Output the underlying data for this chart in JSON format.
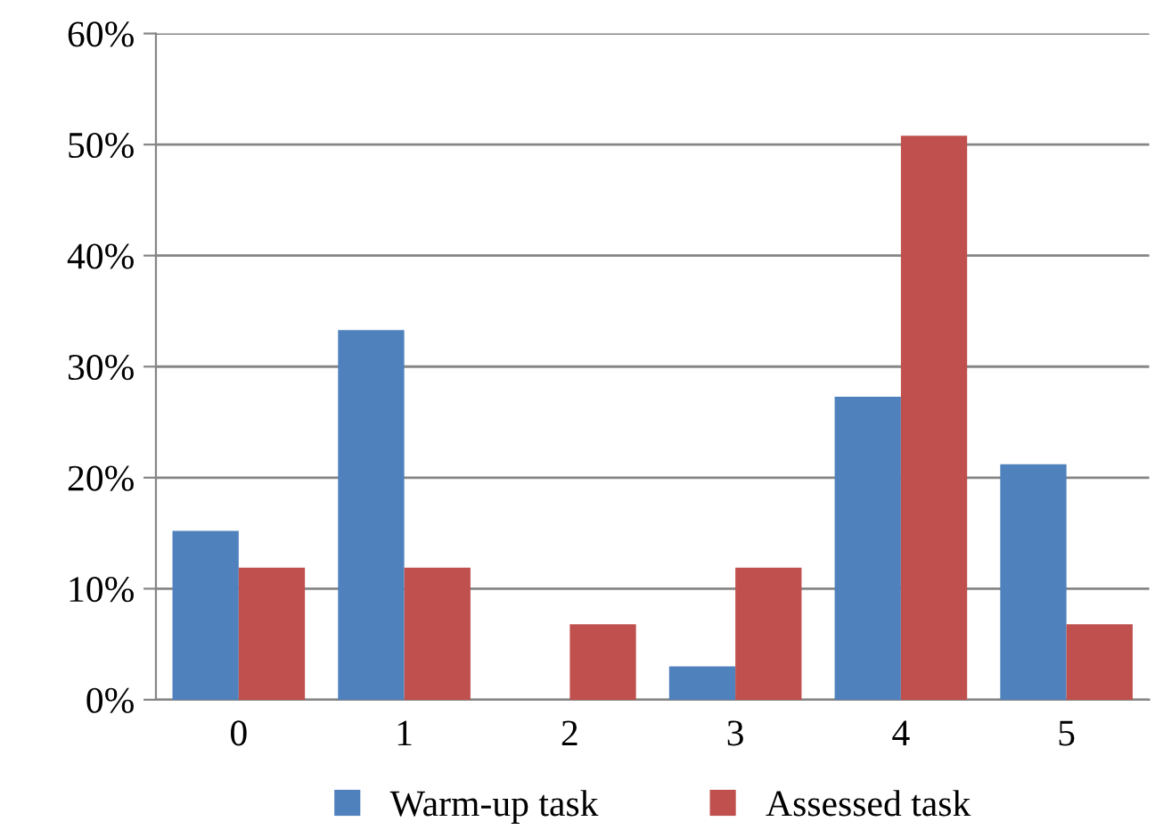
{
  "chart_data": {
    "type": "bar",
    "categories": [
      "0",
      "1",
      "2",
      "3",
      "4",
      "5"
    ],
    "series": [
      {
        "name": "Warm-up task",
        "color": "#4f81bd",
        "values": [
          15.2,
          33.3,
          0,
          3,
          27.3,
          21.2
        ]
      },
      {
        "name": "Assessed task",
        "color": "#c0504d",
        "values": [
          11.9,
          11.9,
          6.8,
          11.9,
          50.8,
          6.8
        ]
      }
    ],
    "ylim": [
      0,
      60
    ],
    "yticks": [
      {
        "value": 0,
        "label": "0%"
      },
      {
        "value": 10,
        "label": "10%"
      },
      {
        "value": 20,
        "label": "20%"
      },
      {
        "value": 30,
        "label": "30%"
      },
      {
        "value": 40,
        "label": "40%"
      },
      {
        "value": 50,
        "label": "50%"
      },
      {
        "value": 60,
        "label": "60%"
      }
    ],
    "grid": "y",
    "legend": "bottom"
  }
}
